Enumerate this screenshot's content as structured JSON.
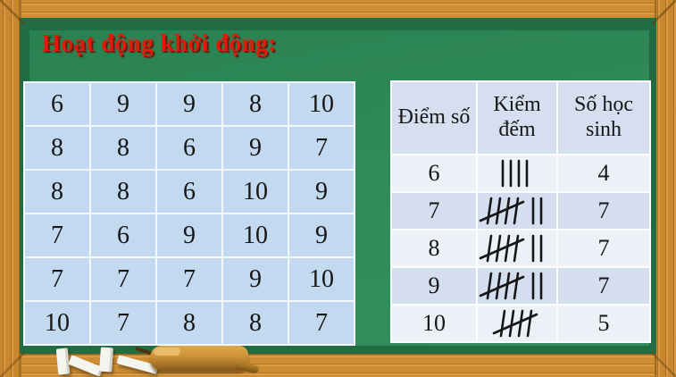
{
  "title": {
    "text": "Hoạt động khởi động:"
  },
  "colors": {
    "title_red": "#E2190B",
    "board_green": "#2F8B58",
    "board_green_dark": "#206C45",
    "frame_wood": "#CE8D33",
    "score_cell_blue": "#C2D9EF",
    "header_blue": "#D5DFEF",
    "row_light": "#ECF1F8",
    "row_dark": "#D4DEEE"
  },
  "left_table": {
    "rows": [
      [
        "6",
        "9",
        "9",
        "8",
        "10"
      ],
      [
        "8",
        "8",
        "6",
        "9",
        "7"
      ],
      [
        "8",
        "8",
        "6",
        "10",
        "9"
      ],
      [
        "7",
        "6",
        "9",
        "10",
        "9"
      ],
      [
        "7",
        "7",
        "7",
        "9",
        "10"
      ],
      [
        "10",
        "7",
        "8",
        "8",
        "7"
      ]
    ]
  },
  "right_table": {
    "headers": [
      "Điểm số",
      "Kiểm đếm",
      "Số học sinh"
    ],
    "rows": [
      {
        "score": "6",
        "tally": [
          4
        ],
        "count": "4"
      },
      {
        "score": "7",
        "tally": [
          5,
          2
        ],
        "count": "7"
      },
      {
        "score": "8",
        "tally": [
          5,
          2
        ],
        "count": "7"
      },
      {
        "score": "9",
        "tally": [
          5,
          2
        ],
        "count": "7"
      },
      {
        "score": "10",
        "tally": [
          5
        ],
        "count": "5"
      }
    ]
  },
  "decor": {
    "eraser": "board-eraser",
    "chalk": "chalk-pieces"
  }
}
